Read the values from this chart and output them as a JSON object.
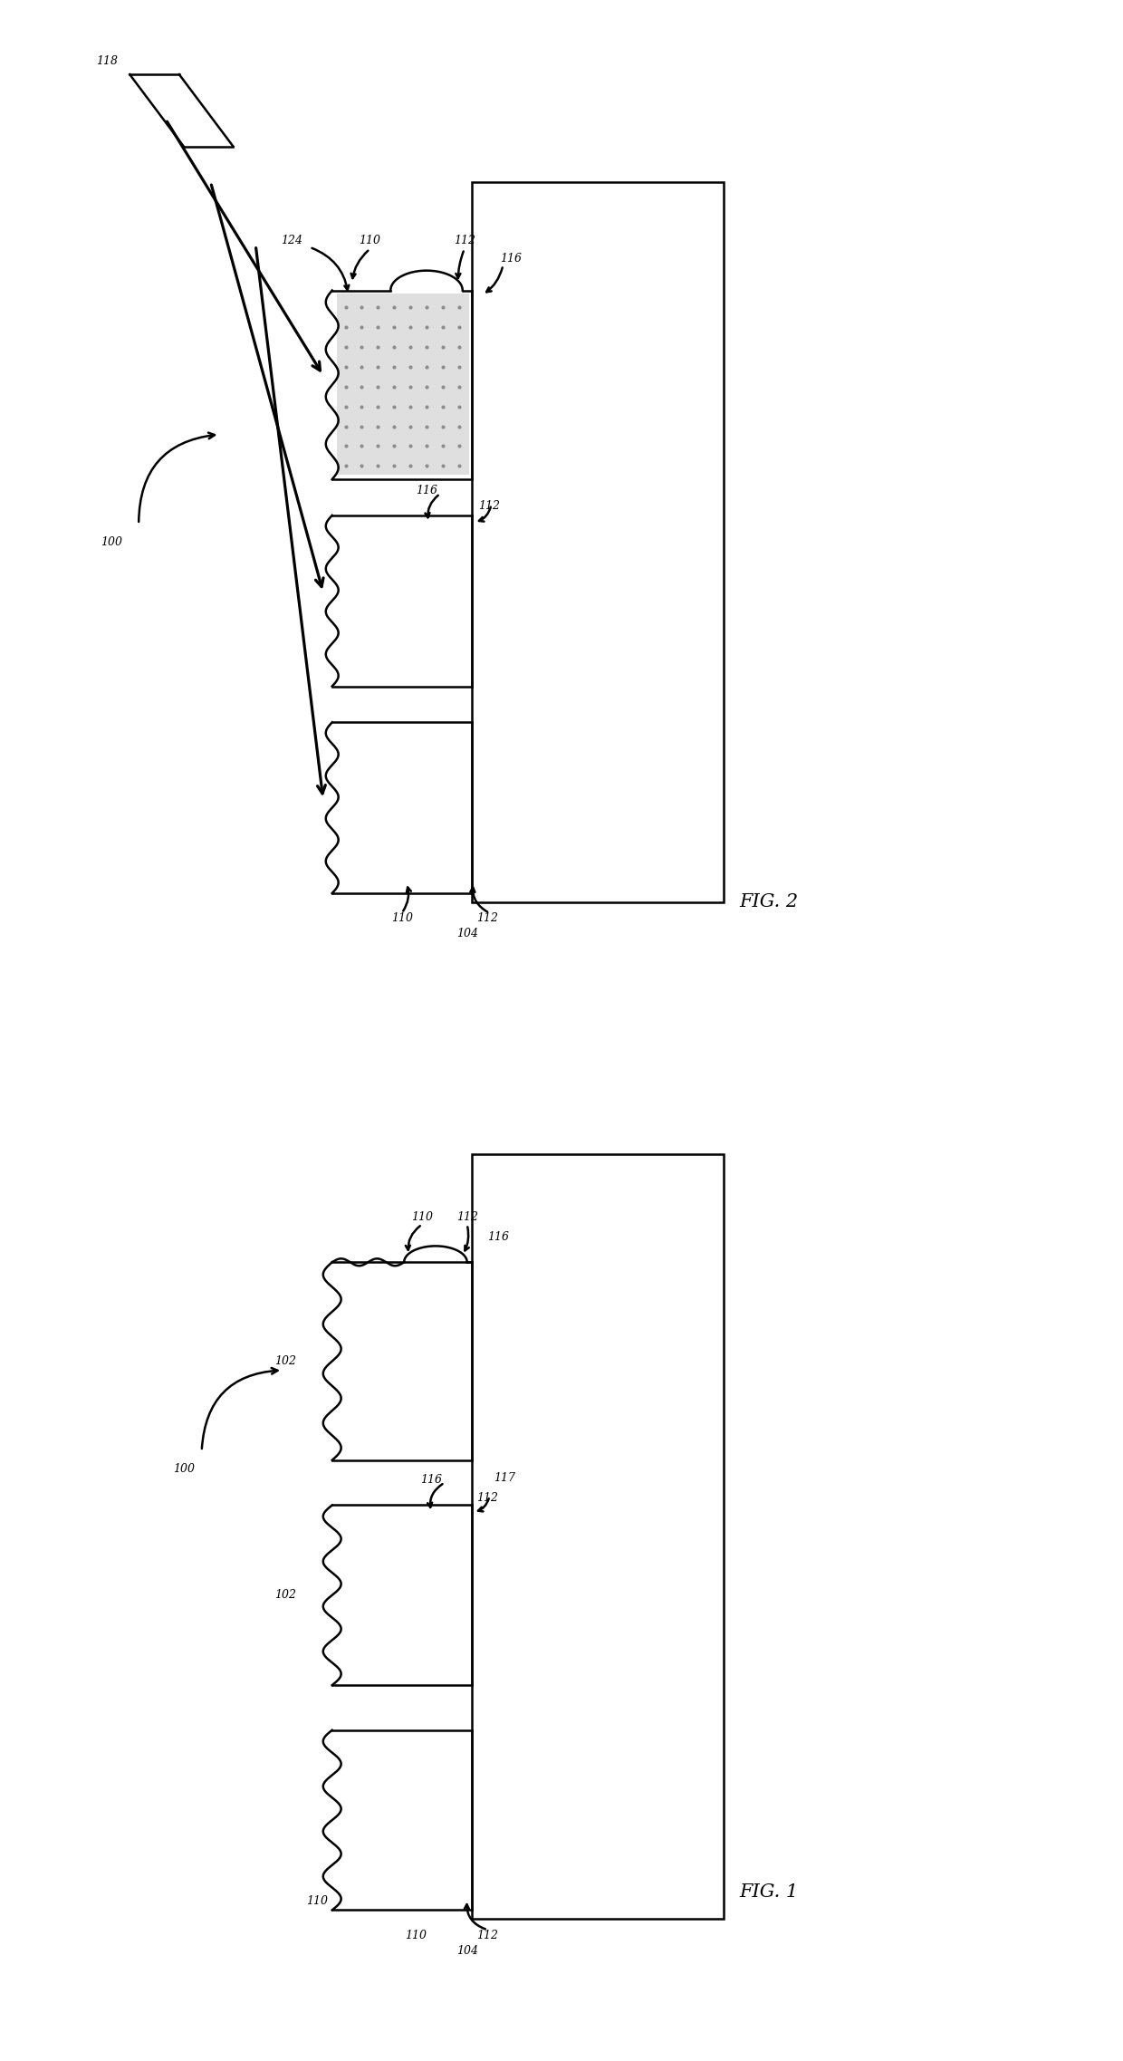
{
  "fig_width": 12.4,
  "fig_height": 22.75,
  "bg_color": "#ffffff",
  "line_color": "#000000",
  "lw": 1.8,
  "fig1_label": "FIG. 1",
  "fig2_label": "FIG. 2",
  "fontsize_label": 9,
  "fontsize_fig": 15
}
